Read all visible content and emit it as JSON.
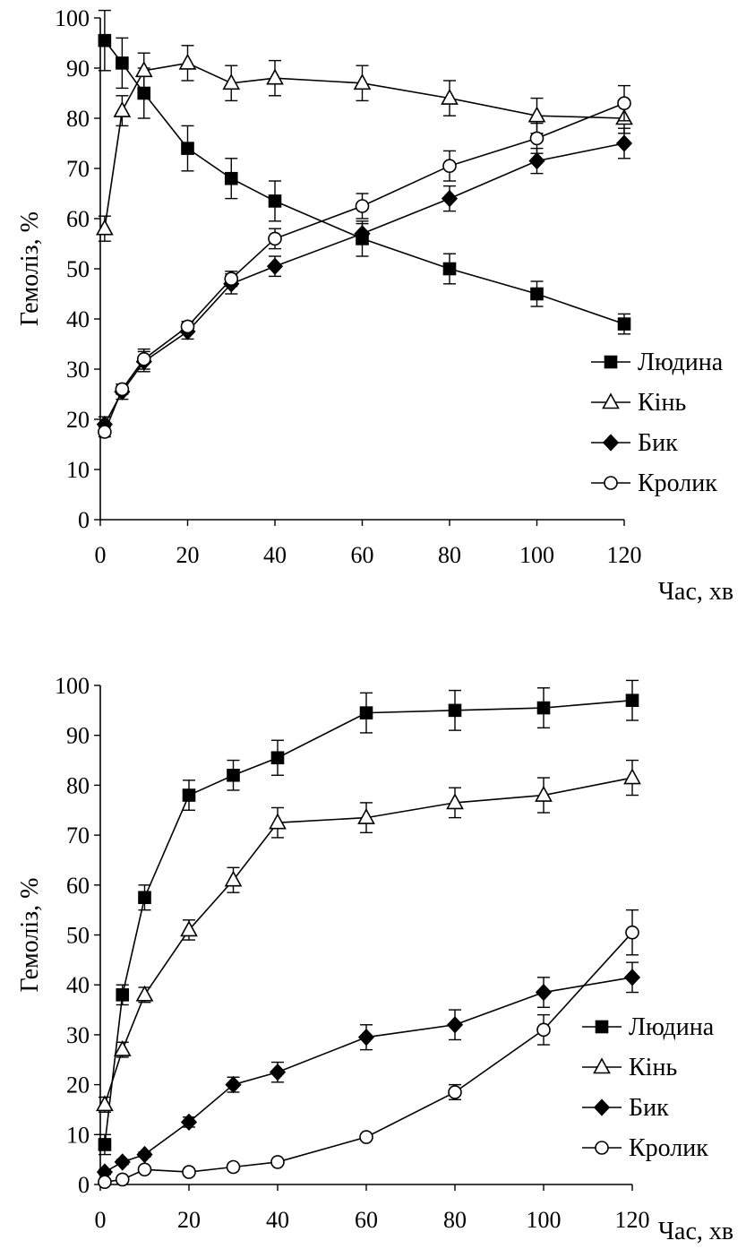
{
  "chart_data": [
    {
      "type": "line",
      "title": "",
      "xlabel": "Час, хв",
      "ylabel": "Гемоліз, %",
      "xlim": [
        0,
        120
      ],
      "ylim": [
        0,
        100
      ],
      "xticks": [
        0,
        20,
        40,
        60,
        80,
        100,
        120
      ],
      "yticks": [
        0,
        10,
        20,
        30,
        40,
        50,
        60,
        70,
        80,
        90,
        100
      ],
      "legend_position": "right",
      "series": [
        {
          "name": "Людина",
          "marker": "square",
          "fill": "#000000",
          "x": [
            1,
            5,
            10,
            20,
            30,
            40,
            60,
            80,
            100,
            120
          ],
          "y": [
            95.5,
            91,
            85,
            74,
            68,
            63.5,
            56,
            50,
            45,
            39
          ],
          "err": [
            6,
            5,
            5,
            4.5,
            4,
            4,
            3.5,
            3,
            2.5,
            2
          ]
        },
        {
          "name": "Кінь",
          "marker": "triangle",
          "fill": "#ffffff",
          "x": [
            1,
            5,
            10,
            20,
            30,
            40,
            60,
            80,
            100,
            120
          ],
          "y": [
            58,
            81.5,
            89.5,
            91,
            87,
            88,
            87,
            84,
            80.5,
            80
          ],
          "err": [
            2.5,
            3,
            3.5,
            3.5,
            3.5,
            3.5,
            3.5,
            3.5,
            3.5,
            3
          ]
        },
        {
          "name": "Бик",
          "marker": "diamond",
          "fill": "#000000",
          "x": [
            1,
            5,
            10,
            20,
            30,
            40,
            60,
            80,
            100,
            120
          ],
          "y": [
            19,
            25.5,
            31.5,
            37.5,
            47,
            50.5,
            57,
            64,
            71.5,
            75
          ],
          "err": [
            1.5,
            1.5,
            2,
            1.5,
            2,
            2,
            2,
            2.5,
            2.5,
            3
          ]
        },
        {
          "name": "Кролик",
          "marker": "circle",
          "fill": "#ffffff",
          "x": [
            1,
            5,
            10,
            20,
            30,
            40,
            60,
            80,
            100,
            120
          ],
          "y": [
            17.5,
            26,
            32,
            38.5,
            48,
            56,
            62.5,
            70.5,
            76,
            83
          ],
          "err": [
            1,
            1,
            2,
            1,
            1.5,
            2,
            2.5,
            3,
            3,
            3.5
          ]
        }
      ]
    },
    {
      "type": "line",
      "title": "",
      "xlabel": "Час, хв",
      "ylabel": "Гемоліз, %",
      "xlim": [
        0,
        120
      ],
      "ylim": [
        0,
        100
      ],
      "xticks": [
        0,
        20,
        40,
        60,
        80,
        100,
        120
      ],
      "yticks": [
        0,
        10,
        20,
        30,
        40,
        50,
        60,
        70,
        80,
        90,
        100
      ],
      "legend_position": "right",
      "series": [
        {
          "name": "Людина",
          "marker": "square",
          "fill": "#000000",
          "x": [
            1,
            5,
            10,
            20,
            30,
            40,
            60,
            80,
            100,
            120
          ],
          "y": [
            8,
            38,
            57.5,
            78,
            82,
            85.5,
            94.5,
            95,
            95.5,
            97
          ],
          "err": [
            2,
            2,
            2.5,
            3,
            3,
            3.5,
            4,
            4,
            4,
            4
          ]
        },
        {
          "name": "Кінь",
          "marker": "triangle",
          "fill": "#ffffff",
          "x": [
            1,
            5,
            10,
            20,
            30,
            40,
            60,
            80,
            100,
            120
          ],
          "y": [
            16,
            27,
            38,
            51,
            61,
            72.5,
            73.5,
            76.5,
            78,
            81.5
          ],
          "err": [
            1.5,
            1.5,
            1.5,
            2,
            2.5,
            3,
            3,
            3,
            3.5,
            3.5
          ]
        },
        {
          "name": "Бик",
          "marker": "diamond",
          "fill": "#000000",
          "x": [
            1,
            5,
            10,
            20,
            30,
            40,
            60,
            80,
            100,
            120
          ],
          "y": [
            2.5,
            4.5,
            6,
            12.5,
            20,
            22.5,
            29.5,
            32,
            38.5,
            41.5
          ],
          "err": [
            0.5,
            0.5,
            0.5,
            1,
            1.5,
            2,
            2.5,
            3,
            3,
            3
          ]
        },
        {
          "name": "Кролик",
          "marker": "circle",
          "fill": "#ffffff",
          "x": [
            1,
            5,
            10,
            20,
            30,
            40,
            60,
            80,
            100,
            120
          ],
          "y": [
            0.5,
            1,
            3,
            2.5,
            3.5,
            4.5,
            9.5,
            18.5,
            31,
            50.5
          ],
          "err": [
            0.3,
            0.3,
            0.5,
            0.5,
            0.5,
            0.5,
            0.5,
            1.5,
            3,
            4.5
          ]
        }
      ]
    }
  ]
}
